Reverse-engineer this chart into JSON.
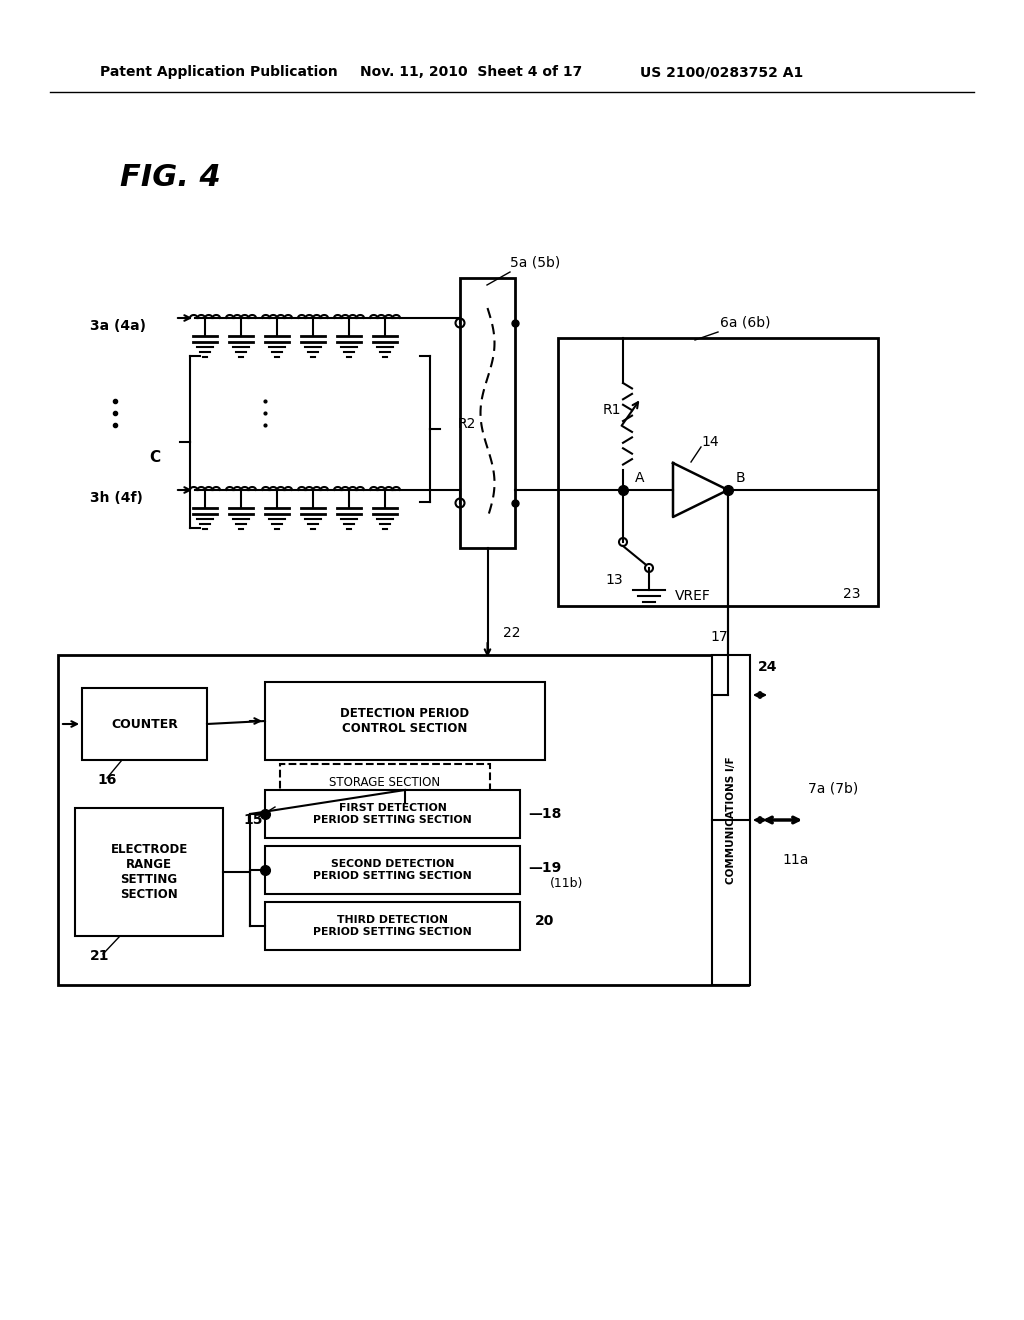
{
  "bg_color": "#ffffff",
  "header_left": "Patent Application Publication",
  "header_mid": "Nov. 11, 2010  Sheet 4 of 17",
  "header_right": "US 2100/0283752 A1",
  "fig_label": "FIG. 4",
  "label_3a": "3a (4a)",
  "label_3h": "3h (4f)",
  "label_R2": "R2",
  "label_C": "C",
  "label_22": "22",
  "label_5a": "5a (5b)",
  "label_6a": "6a (6b)",
  "label_R1": "R1",
  "label_A": "A",
  "label_B": "B",
  "label_14": "14",
  "label_13": "13",
  "label_VREF": "VREF",
  "label_23": "23",
  "label_17": "17",
  "label_24": "24",
  "label_counter": "COUNTER",
  "label_16": "16",
  "label_15": "15",
  "label_detect_ctrl": "DETECTION PERIOD\nCONTROL SECTION",
  "label_storage": "STORAGE SECTION",
  "label_electrode": "ELECTRODE\nRANGE\nSETTING\nSECTION",
  "label_21": "21",
  "label_first": "FIRST DETECTION\nPERIOD SETTING SECTION",
  "label_second": "SECOND DETECTION\nPERIOD SETTING SECTION",
  "label_third": "THIRD DETECTION\nPERIOD SETTING SECTION",
  "label_18": "18",
  "label_19": "19",
  "label_11b": "(11b)",
  "label_20": "20",
  "label_comm": "COMMUNICATIONS I/F",
  "label_7a": "7a (7b)",
  "label_11a": "11a"
}
